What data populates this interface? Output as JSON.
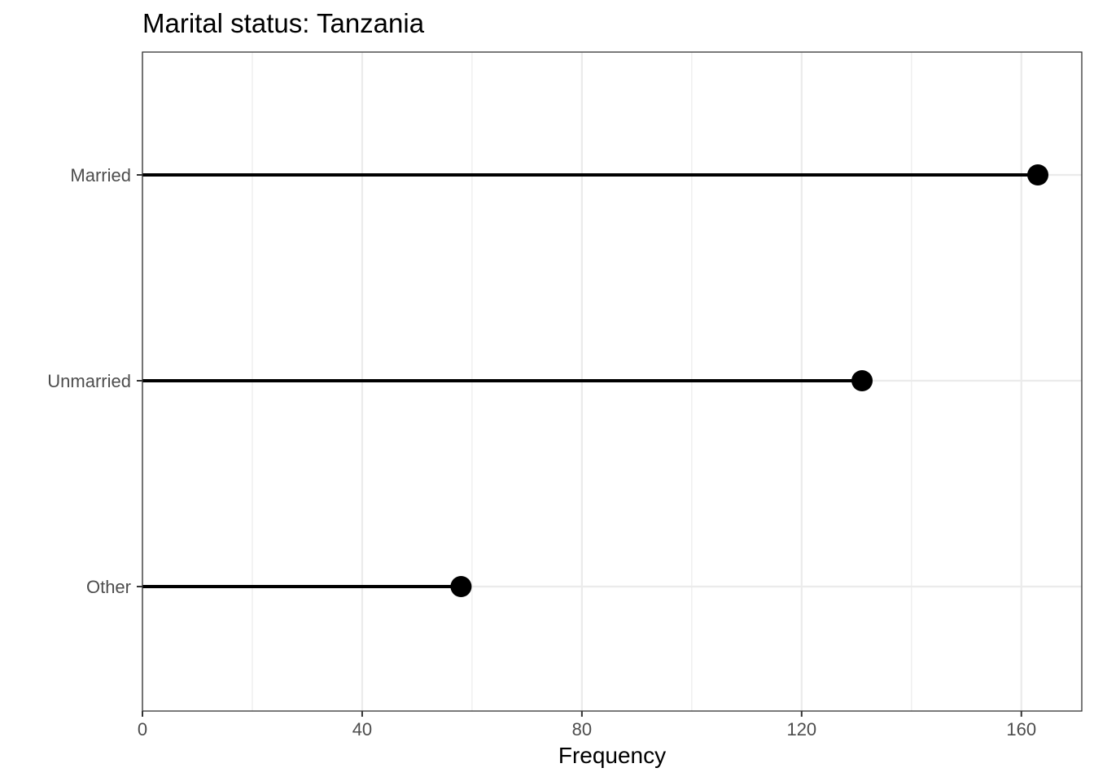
{
  "chart_data": {
    "type": "lollipop",
    "title": "Marital status: Tanzania",
    "xlabel": "Frequency",
    "ylabel": "",
    "xlim": [
      0,
      171
    ],
    "x_ticks": [
      0,
      40,
      80,
      120,
      160
    ],
    "x_tick_labels": [
      "0",
      "40",
      "80",
      "120",
      "160"
    ],
    "categories": [
      "Married",
      "Unmarried",
      "Other"
    ],
    "values": [
      163,
      131,
      58
    ],
    "grid": true,
    "legend": "none",
    "colors": {
      "mark": "#000000",
      "grid": "#ebebeb",
      "panel_border": "#333333",
      "tick_text": "#4d4d4d",
      "title_text": "#000000"
    }
  }
}
